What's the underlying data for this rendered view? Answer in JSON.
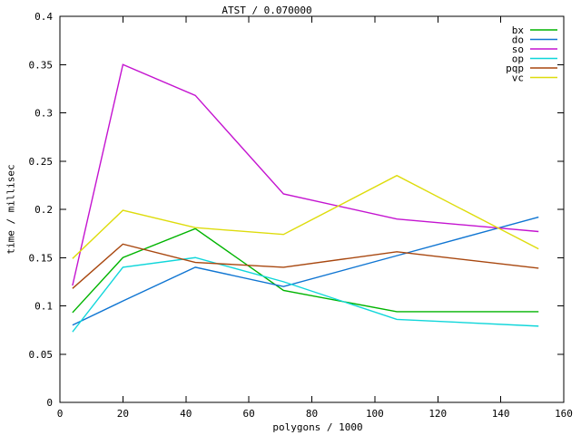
{
  "chart_data": {
    "type": "line",
    "title": "ATST / 0.070000",
    "xlabel": "polygons / 1000",
    "ylabel": "time / millisec",
    "xlim": [
      0,
      160
    ],
    "ylim": [
      0,
      0.4
    ],
    "xticks": [
      "0",
      "20",
      "40",
      "60",
      "80",
      "100",
      "120",
      "140",
      "160"
    ],
    "yticks": [
      "0",
      "0.05",
      "0.1",
      "0.15",
      "0.2",
      "0.25",
      "0.3",
      "0.35",
      "0.4"
    ],
    "grid": false,
    "legend_position": "top-right-inside",
    "x": [
      4,
      20,
      43,
      71,
      107,
      152
    ],
    "series": [
      {
        "name": "bx",
        "color": "#00b400",
        "values": [
          0.093,
          0.15,
          0.18,
          0.116,
          0.094,
          0.094
        ]
      },
      {
        "name": "do",
        "color": "#0f75d2",
        "values": [
          0.08,
          0.105,
          0.14,
          0.12,
          0.152,
          0.192
        ]
      },
      {
        "name": "so",
        "color": "#c414d0",
        "values": [
          0.121,
          0.35,
          0.318,
          0.216,
          0.19,
          0.177
        ]
      },
      {
        "name": "op",
        "color": "#0fd6da",
        "values": [
          0.073,
          0.14,
          0.15,
          0.125,
          0.086,
          0.079
        ]
      },
      {
        "name": "pqp",
        "color": "#a8470f",
        "values": [
          0.118,
          0.164,
          0.145,
          0.14,
          0.156,
          0.139
        ]
      },
      {
        "name": "vc",
        "color": "#dedc0c",
        "values": [
          0.149,
          0.199,
          0.181,
          0.174,
          0.235,
          0.159
        ]
      }
    ],
    "colors": {
      "foreground": "#000000",
      "background": "#ffffff"
    }
  }
}
